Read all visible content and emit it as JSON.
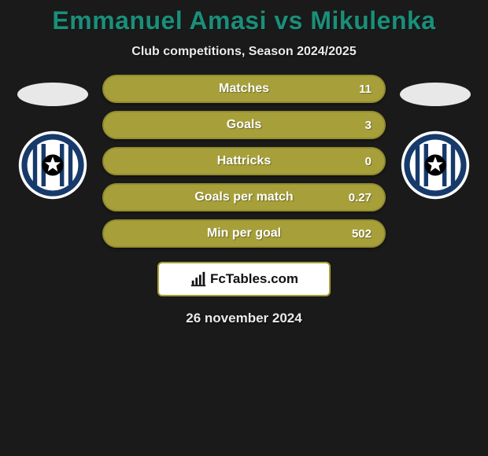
{
  "title": "Emmanuel Amasi vs Mikulenka",
  "subtitle": "Club competitions, Season 2024/2025",
  "date": "26 november 2024",
  "footer_brand": "FcTables.com",
  "colors": {
    "background": "#1a1a1a",
    "title": "#1a8f7a",
    "text_light": "#eaeaea",
    "pill_bg": "#a7a03a",
    "pill_border": "#928c2f",
    "pill_text": "#ffffff",
    "badge_bg": "#ffffff",
    "badge_border": "#a7a03a",
    "logo_ring": "#ffffff",
    "logo_inner": "#173a6b",
    "logo_star_bg": "#000000",
    "logo_stripes": "#173a6b"
  },
  "left_logo_alt": "SK Sigma Olomouc badge",
  "right_logo_alt": "SK Sigma Olomouc badge",
  "stats": [
    {
      "label": "Matches",
      "value": "11"
    },
    {
      "label": "Goals",
      "value": "3"
    },
    {
      "label": "Hattricks",
      "value": "0"
    },
    {
      "label": "Goals per match",
      "value": "0.27"
    },
    {
      "label": "Min per goal",
      "value": "502"
    }
  ],
  "chart_style": {
    "type": "infographic",
    "pill_height": 36,
    "pill_radius": 18,
    "pill_gap": 10,
    "label_fontsize": 16,
    "value_fontsize": 15,
    "title_fontsize": 32,
    "subtitle_fontsize": 16,
    "date_fontsize": 17
  }
}
